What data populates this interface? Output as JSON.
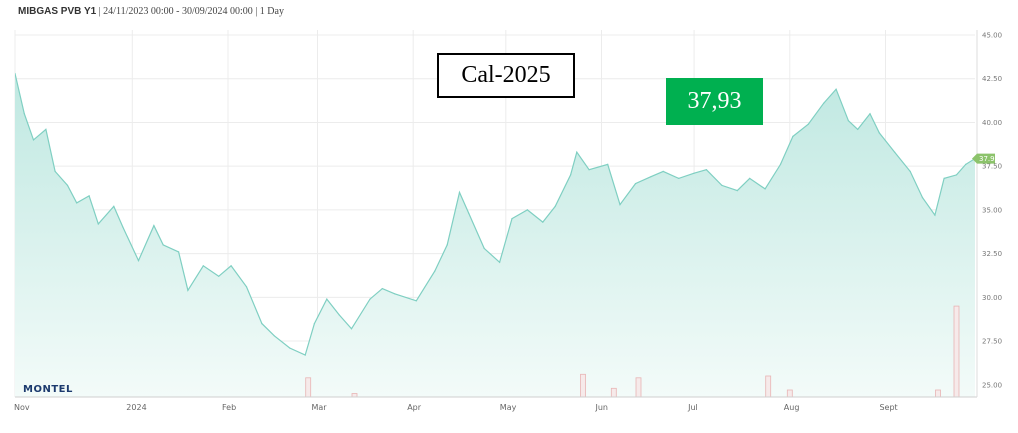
{
  "header": {
    "instrument": "MIBGAS PVB Y1",
    "range": " | 24/11/2023 00:00 - 30/09/2024 00:00 | 1 Day"
  },
  "annotations": {
    "product_label": "Cal-2025",
    "price_label": "37,93"
  },
  "logo": {
    "text": "MONTEL"
  },
  "colors": {
    "line": "#7fcfc2",
    "fill_top": "#bfe8e1",
    "fill_bottom": "#f3fbf9",
    "price_box": "#00b050",
    "last_price_marker": "#8cc36b",
    "volume_bar": "#e8b4b4"
  },
  "chart_data": {
    "type": "area",
    "title": "MIBGAS PVB Y1",
    "xlabel": "",
    "ylabel": "",
    "x_axis_labels": [
      "Nov",
      "2024",
      "Feb",
      "Mar",
      "Apr",
      "May",
      "Jun",
      "Jul",
      "Aug",
      "Sept"
    ],
    "x_axis_dates": [
      "2023-11-24",
      "2024-01-01",
      "2024-02-01",
      "2024-03-01",
      "2024-04-01",
      "2024-05-01",
      "2024-06-01",
      "2024-07-01",
      "2024-08-01",
      "2024-09-01"
    ],
    "y_ticks": [
      "45.00",
      "42.50",
      "40.00",
      "37.50",
      "35.00",
      "32.50",
      "30.00",
      "27.50",
      "25.00"
    ],
    "ylim": [
      24.3,
      45.0
    ],
    "grid": true,
    "last_value_label": "37.93",
    "series": [
      {
        "points": [
          [
            "2023-11-24",
            42.8
          ],
          [
            "2023-11-27",
            40.5
          ],
          [
            "2023-11-30",
            39.0
          ],
          [
            "2023-12-04",
            39.6
          ],
          [
            "2023-12-07",
            37.2
          ],
          [
            "2023-12-11",
            36.4
          ],
          [
            "2023-12-14",
            35.4
          ],
          [
            "2023-12-18",
            35.8
          ],
          [
            "2023-12-21",
            34.2
          ],
          [
            "2023-12-26",
            35.2
          ],
          [
            "2023-12-29",
            34.0
          ],
          [
            "2024-01-03",
            32.1
          ],
          [
            "2024-01-08",
            34.1
          ],
          [
            "2024-01-11",
            33.0
          ],
          [
            "2024-01-16",
            32.6
          ],
          [
            "2024-01-19",
            30.4
          ],
          [
            "2024-01-24",
            31.8
          ],
          [
            "2024-01-29",
            31.2
          ],
          [
            "2024-02-02",
            31.8
          ],
          [
            "2024-02-07",
            30.6
          ],
          [
            "2024-02-12",
            28.5
          ],
          [
            "2024-02-16",
            27.8
          ],
          [
            "2024-02-21",
            27.1
          ],
          [
            "2024-02-26",
            26.7
          ],
          [
            "2024-02-29",
            28.5
          ],
          [
            "2024-03-04",
            29.9
          ],
          [
            "2024-03-08",
            29.0
          ],
          [
            "2024-03-12",
            28.2
          ],
          [
            "2024-03-18",
            29.9
          ],
          [
            "2024-03-22",
            30.5
          ],
          [
            "2024-03-26",
            30.2
          ],
          [
            "2024-04-02",
            29.8
          ],
          [
            "2024-04-08",
            31.5
          ],
          [
            "2024-04-12",
            33.0
          ],
          [
            "2024-04-16",
            36.0
          ],
          [
            "2024-04-19",
            34.8
          ],
          [
            "2024-04-24",
            32.8
          ],
          [
            "2024-04-29",
            32.0
          ],
          [
            "2024-05-03",
            34.5
          ],
          [
            "2024-05-08",
            35.0
          ],
          [
            "2024-05-13",
            34.3
          ],
          [
            "2024-05-17",
            35.2
          ],
          [
            "2024-05-22",
            37.0
          ],
          [
            "2024-05-24",
            38.3
          ],
          [
            "2024-05-28",
            37.3
          ],
          [
            "2024-06-03",
            37.6
          ],
          [
            "2024-06-07",
            35.3
          ],
          [
            "2024-06-12",
            36.5
          ],
          [
            "2024-06-17",
            36.9
          ],
          [
            "2024-06-21",
            37.2
          ],
          [
            "2024-06-26",
            36.8
          ],
          [
            "2024-07-01",
            37.1
          ],
          [
            "2024-07-05",
            37.3
          ],
          [
            "2024-07-10",
            36.4
          ],
          [
            "2024-07-15",
            36.1
          ],
          [
            "2024-07-19",
            36.8
          ],
          [
            "2024-07-24",
            36.2
          ],
          [
            "2024-07-29",
            37.6
          ],
          [
            "2024-08-02",
            39.2
          ],
          [
            "2024-08-07",
            39.9
          ],
          [
            "2024-08-12",
            41.1
          ],
          [
            "2024-08-16",
            41.9
          ],
          [
            "2024-08-20",
            40.1
          ],
          [
            "2024-08-23",
            39.6
          ],
          [
            "2024-08-27",
            40.5
          ],
          [
            "2024-08-30",
            39.4
          ],
          [
            "2024-09-04",
            38.3
          ],
          [
            "2024-09-09",
            37.2
          ],
          [
            "2024-09-13",
            35.7
          ],
          [
            "2024-09-17",
            34.7
          ],
          [
            "2024-09-20",
            36.8
          ],
          [
            "2024-09-24",
            37.0
          ],
          [
            "2024-09-27",
            37.6
          ],
          [
            "2024-09-30",
            37.93
          ]
        ]
      }
    ],
    "volume": [
      [
        "2024-02-27",
        25.4
      ],
      [
        "2024-03-13",
        24.5
      ],
      [
        "2024-05-26",
        25.6
      ],
      [
        "2024-06-05",
        24.8
      ],
      [
        "2024-06-13",
        25.4
      ],
      [
        "2024-07-25",
        25.5
      ],
      [
        "2024-08-01",
        24.7
      ],
      [
        "2024-09-18",
        24.7
      ],
      [
        "2024-09-24",
        29.5
      ]
    ]
  }
}
